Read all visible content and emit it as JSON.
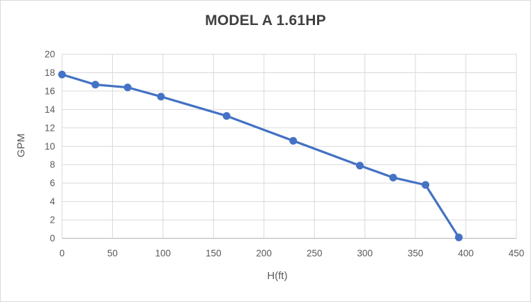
{
  "window": {
    "background": "#ffffff",
    "border_color": "#d9d9d9"
  },
  "chart_data": {
    "type": "line",
    "title": "MODEL A 1.61HP",
    "xlabel": "H(ft)",
    "ylabel": "GPM",
    "xlim": [
      0,
      450
    ],
    "ylim": [
      0,
      20
    ],
    "x_ticks": [
      0,
      50,
      100,
      150,
      200,
      250,
      300,
      350,
      400,
      450
    ],
    "y_ticks": [
      0,
      2,
      4,
      6,
      8,
      10,
      12,
      14,
      16,
      18,
      20
    ],
    "grid": true,
    "legend_position": "none",
    "series": [
      {
        "name": "GPM vs H(ft)",
        "marker": "circle",
        "color": "#4472c4",
        "x": [
          0,
          33,
          65,
          98,
          163,
          229,
          295,
          328,
          360,
          393
        ],
        "y": [
          17.8,
          16.7,
          16.4,
          15.4,
          13.3,
          10.6,
          7.9,
          6.6,
          5.8,
          0.1
        ]
      }
    ],
    "colors": {
      "line": "#4472c4",
      "marker": "#4472c4",
      "gridline": "#d9d9d9",
      "axis_line": "#bfbfbf",
      "tick_label": "#595959",
      "title": "#404040",
      "axis_label": "#595959",
      "plot_background": "#ffffff"
    }
  }
}
